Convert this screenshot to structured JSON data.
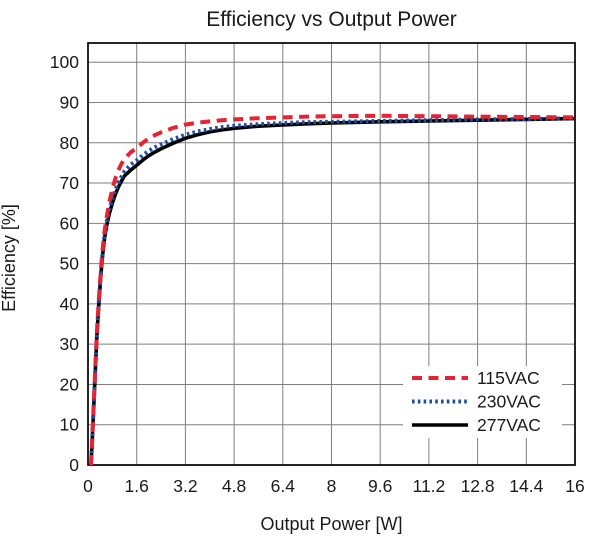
{
  "chart_data": {
    "type": "line",
    "title": "Efficiency vs Output Power",
    "xlabel": "Output Power [W]",
    "ylabel": "Efficiency [%]",
    "xlim": [
      0,
      16
    ],
    "ylim": [
      0,
      105
    ],
    "grid": true,
    "legend_position": "lower-right",
    "x_ticks": [
      0,
      1.6,
      3.2,
      4.8,
      6.4,
      8,
      9.6,
      11.2,
      12.8,
      14.4,
      16
    ],
    "x_tick_labels": [
      "0",
      "1.6",
      "3.2",
      "4.8",
      "6.4",
      "8",
      "9.6",
      "11.2",
      "12.8",
      "14.4",
      "16"
    ],
    "y_ticks": [
      0,
      10,
      20,
      30,
      40,
      50,
      60,
      70,
      80,
      90,
      100
    ],
    "y_tick_labels": [
      "0",
      "10",
      "20",
      "30",
      "40",
      "50",
      "60",
      "70",
      "80",
      "90",
      "100"
    ],
    "colors": {
      "grid": "#7f7f7f",
      "axis_border": "#000000",
      "text": "#1a1a1a",
      "series_115vac": "#e62333",
      "series_230vac": "#1f4da0",
      "series_277vac": "#000000"
    },
    "series": [
      {
        "name": "115VAC",
        "color": "#e62333",
        "style": "dashed",
        "points": [
          [
            0.1,
            0
          ],
          [
            0.13,
            5
          ],
          [
            0.17,
            12
          ],
          [
            0.2,
            17
          ],
          [
            0.25,
            26
          ],
          [
            0.3,
            34
          ],
          [
            0.35,
            40.5
          ],
          [
            0.4,
            46
          ],
          [
            0.45,
            51
          ],
          [
            0.5,
            55
          ],
          [
            0.55,
            58.3
          ],
          [
            0.6,
            61
          ],
          [
            0.7,
            65.2
          ],
          [
            0.8,
            68.5
          ],
          [
            0.9,
            71.2
          ],
          [
            1.0,
            73.2
          ],
          [
            1.1,
            74.8
          ],
          [
            1.2,
            76
          ],
          [
            1.4,
            77.6
          ],
          [
            1.6,
            78.7
          ],
          [
            1.8,
            80
          ],
          [
            2.0,
            81.1
          ],
          [
            2.2,
            81.9
          ],
          [
            2.4,
            82.6
          ],
          [
            2.8,
            83.7
          ],
          [
            3.2,
            84.5
          ],
          [
            3.6,
            85
          ],
          [
            4.0,
            85.3
          ],
          [
            4.4,
            85.6
          ],
          [
            4.8,
            85.8
          ],
          [
            5.6,
            86.1
          ],
          [
            6.4,
            86.3
          ],
          [
            7.2,
            86.5
          ],
          [
            8.0,
            86.6
          ],
          [
            9.6,
            86.7
          ],
          [
            11.2,
            86.6
          ],
          [
            12.8,
            86.5
          ],
          [
            14.4,
            86.4
          ],
          [
            16,
            86.3
          ]
        ]
      },
      {
        "name": "230VAC",
        "color": "#1f4da0",
        "style": "dotted",
        "points": [
          [
            0.1,
            0
          ],
          [
            0.13,
            5
          ],
          [
            0.17,
            12
          ],
          [
            0.2,
            17
          ],
          [
            0.25,
            25.5
          ],
          [
            0.3,
            33.5
          ],
          [
            0.35,
            40
          ],
          [
            0.4,
            45.5
          ],
          [
            0.45,
            50.3
          ],
          [
            0.5,
            54.2
          ],
          [
            0.55,
            57.3
          ],
          [
            0.6,
            60
          ],
          [
            0.7,
            63.4
          ],
          [
            0.8,
            66.1
          ],
          [
            0.9,
            68.3
          ],
          [
            1.0,
            70.1
          ],
          [
            1.1,
            71.6
          ],
          [
            1.2,
            72.9
          ],
          [
            1.4,
            74.6
          ],
          [
            1.6,
            75.6
          ],
          [
            1.8,
            76.9
          ],
          [
            2.0,
            78.0
          ],
          [
            2.2,
            78.9
          ],
          [
            2.4,
            79.6
          ],
          [
            2.8,
            80.9
          ],
          [
            3.2,
            82.0
          ],
          [
            3.6,
            82.8
          ],
          [
            4.0,
            83.4
          ],
          [
            4.4,
            83.9
          ],
          [
            4.8,
            84.2
          ],
          [
            5.6,
            84.6
          ],
          [
            6.4,
            84.9
          ],
          [
            7.2,
            85.1
          ],
          [
            8.0,
            85.2
          ],
          [
            9.6,
            85.4
          ],
          [
            11.2,
            85.6
          ],
          [
            12.8,
            85.8
          ],
          [
            14.4,
            85.9
          ],
          [
            16,
            86.1
          ]
        ]
      },
      {
        "name": "277VAC",
        "color": "#000000",
        "style": "solid",
        "points": [
          [
            0.1,
            0
          ],
          [
            0.13,
            5
          ],
          [
            0.17,
            11.5
          ],
          [
            0.2,
            16.5
          ],
          [
            0.25,
            25
          ],
          [
            0.3,
            33
          ],
          [
            0.35,
            39.3
          ],
          [
            0.4,
            44.8
          ],
          [
            0.45,
            49.6
          ],
          [
            0.5,
            53.5
          ],
          [
            0.55,
            56.5
          ],
          [
            0.6,
            59
          ],
          [
            0.7,
            62.4
          ],
          [
            0.8,
            65
          ],
          [
            0.9,
            67.2
          ],
          [
            1.0,
            69
          ],
          [
            1.1,
            70.5
          ],
          [
            1.2,
            71.8
          ],
          [
            1.4,
            73.2
          ],
          [
            1.6,
            74.4
          ],
          [
            1.8,
            75.7
          ],
          [
            2.0,
            76.8
          ],
          [
            2.2,
            77.7
          ],
          [
            2.4,
            78.5
          ],
          [
            2.8,
            79.9
          ],
          [
            3.2,
            81.1
          ],
          [
            3.6,
            82.0
          ],
          [
            4.0,
            82.7
          ],
          [
            4.4,
            83.2
          ],
          [
            4.8,
            83.6
          ],
          [
            5.6,
            84.1
          ],
          [
            6.4,
            84.4
          ],
          [
            7.2,
            84.7
          ],
          [
            8.0,
            84.9
          ],
          [
            9.6,
            85.2
          ],
          [
            11.2,
            85.4
          ],
          [
            12.8,
            85.6
          ],
          [
            14.4,
            85.8
          ],
          [
            16,
            86.0
          ]
        ]
      }
    ]
  }
}
